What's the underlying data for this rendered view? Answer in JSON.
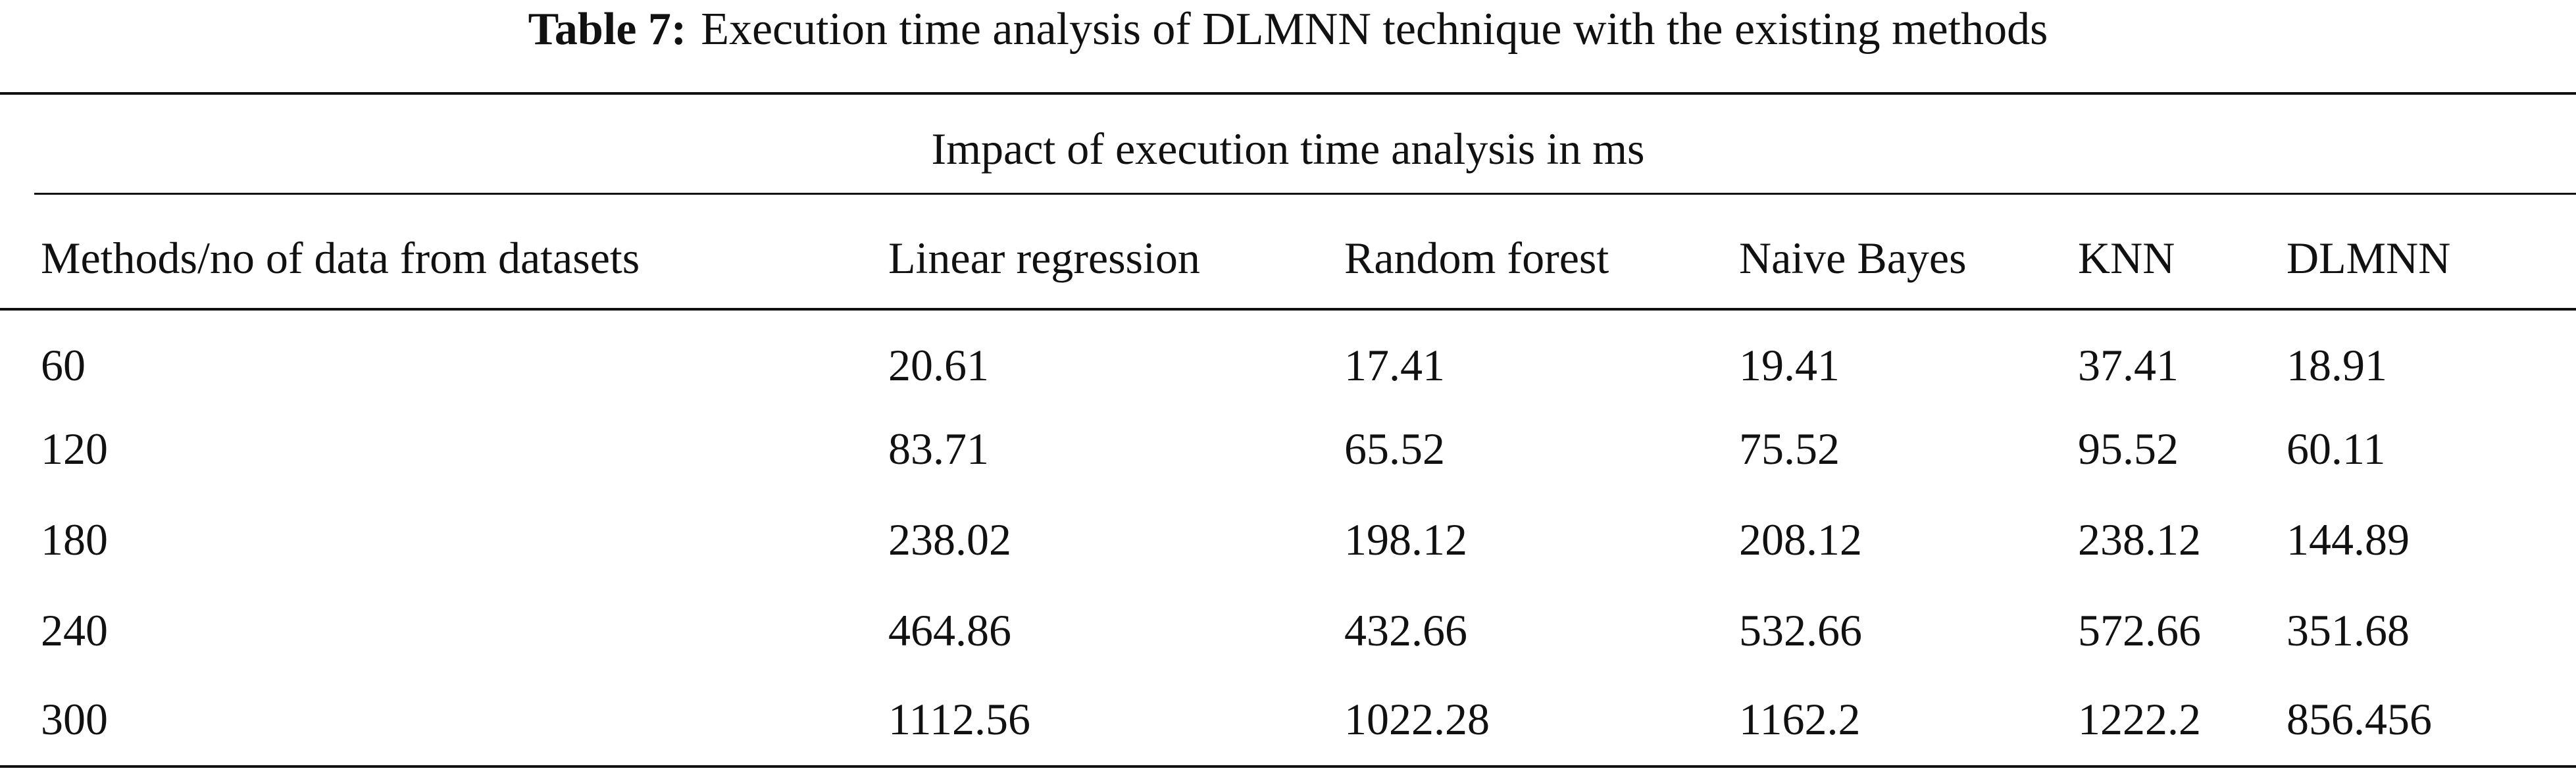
{
  "caption": {
    "label": "Table 7:",
    "text": "Execution time analysis of DLMNN technique with the existing methods"
  },
  "table": {
    "group_header": "Impact of execution time analysis in ms",
    "columns": [
      "Methods/no of data from datasets",
      "Linear regression",
      "Random forest",
      "Naive Bayes",
      "KNN",
      "DLMNN"
    ],
    "rows": [
      [
        "60",
        "20.61",
        "17.41",
        "19.41",
        "37.41",
        "18.91"
      ],
      [
        "120",
        "83.71",
        "65.52",
        "75.52",
        "95.52",
        "60.11"
      ],
      [
        "180",
        "238.02",
        "198.12",
        "208.12",
        "238.12",
        "144.89"
      ],
      [
        "240",
        "464.86",
        "432.66",
        "532.66",
        "572.66",
        "351.68"
      ],
      [
        "300",
        "1112.56",
        "1022.28",
        "1162.2",
        "1222.2",
        "856.456"
      ]
    ]
  }
}
